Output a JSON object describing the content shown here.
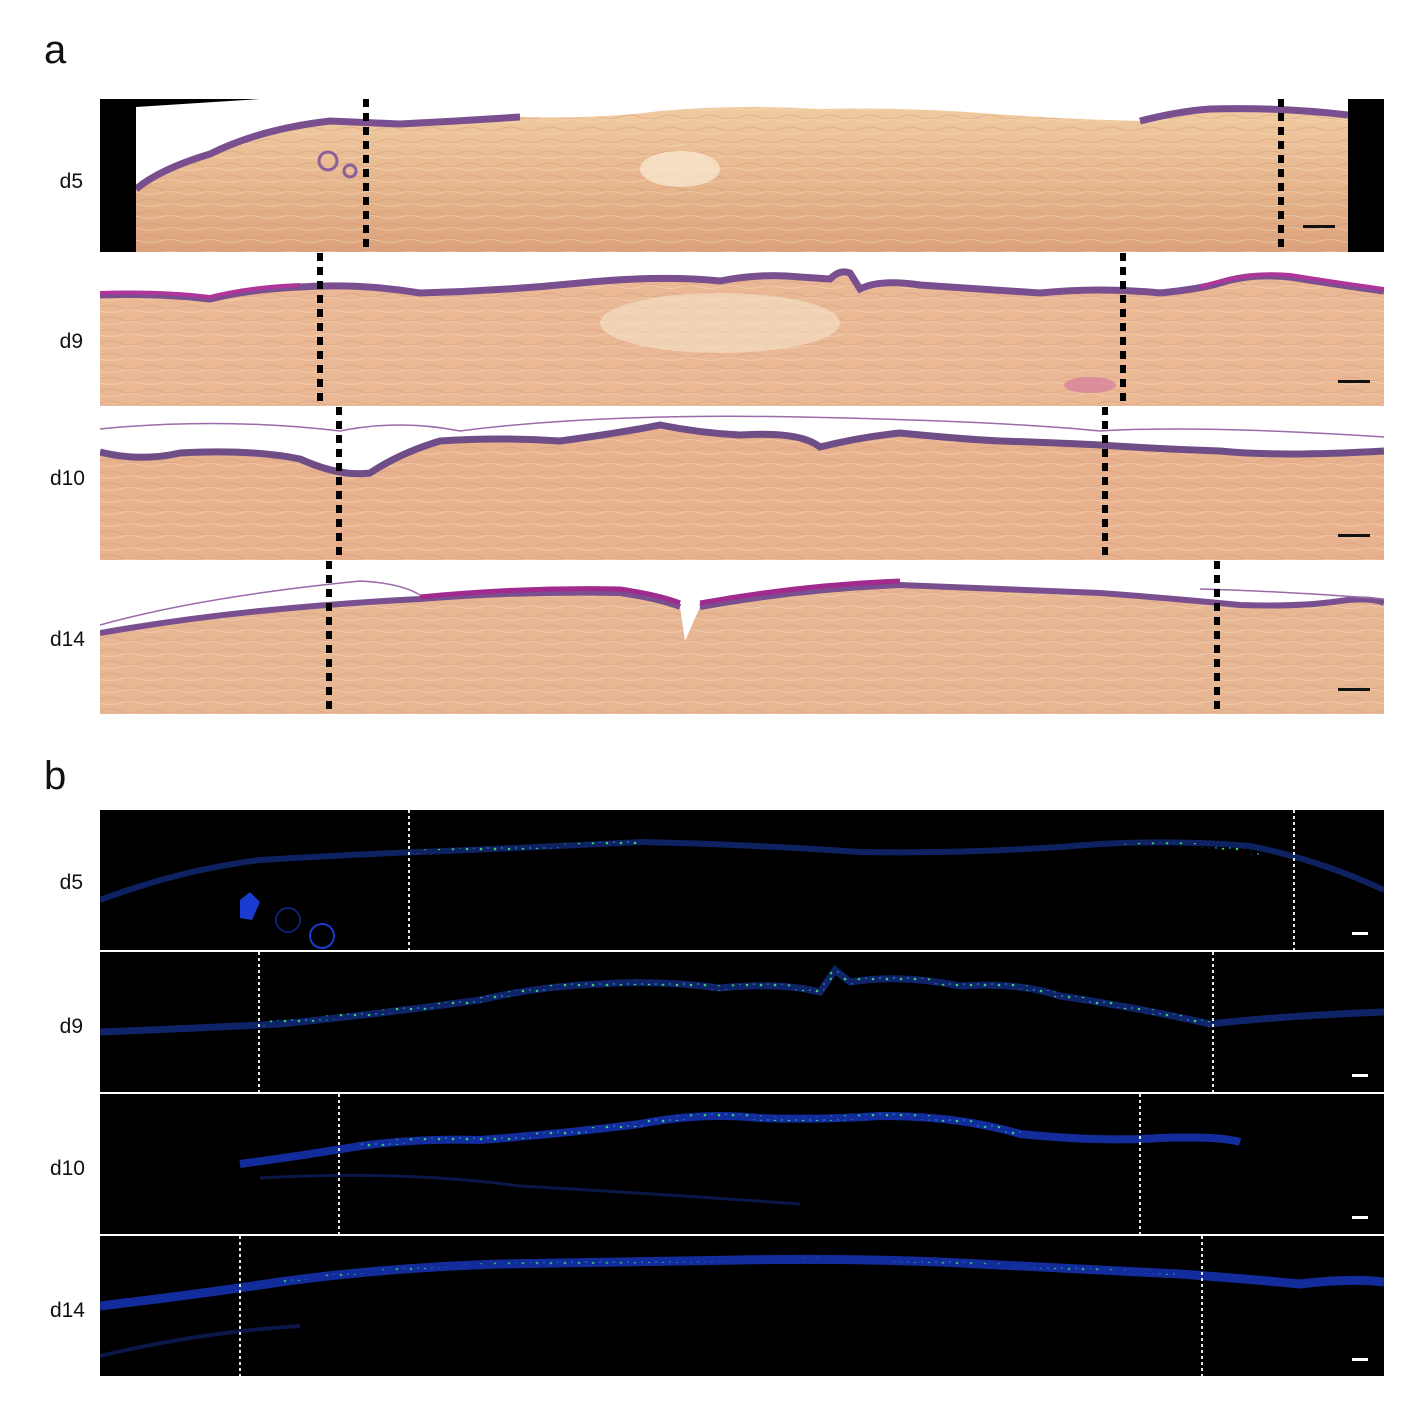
{
  "panel_a": {
    "letter": "a",
    "rows": [
      {
        "label": "d5",
        "boundaries": [
          0.207,
          0.92
        ],
        "image": "HE stained skin section, day 5"
      },
      {
        "label": "d9",
        "boundaries": [
          0.171,
          0.797
        ],
        "image": "HE stained skin section, day 9"
      },
      {
        "label": "d10",
        "boundaries": [
          0.186,
          0.783
        ],
        "image": "HE stained skin section, day 10"
      },
      {
        "label": "d14",
        "boundaries": [
          0.178,
          0.87
        ],
        "image": "HE stained skin section, day 14"
      }
    ]
  },
  "panel_b": {
    "letter": "b",
    "rows": [
      {
        "label": "d5",
        "boundaries": [
          0.241,
          0.93
        ],
        "image": "Fluorescence skin section, day 5"
      },
      {
        "label": "d9",
        "boundaries": [
          0.124,
          0.867
        ],
        "image": "Fluorescence skin section, day 9"
      },
      {
        "label": "d10",
        "boundaries": [
          0.186,
          0.81
        ],
        "image": "Fluorescence skin section, day 10"
      },
      {
        "label": "d14",
        "boundaries": [
          0.109,
          0.858
        ],
        "image": "Fluorescence skin section, day 14"
      }
    ]
  },
  "colors": {
    "dermis": "#e8b98c",
    "dermis_dark": "#d9a27a",
    "epidermis": "#7a4f8f",
    "stratum": "#b0359a",
    "fluor_bg": "#000000",
    "dapi": "#1a3bd0",
    "gfp": "#35d06a"
  }
}
